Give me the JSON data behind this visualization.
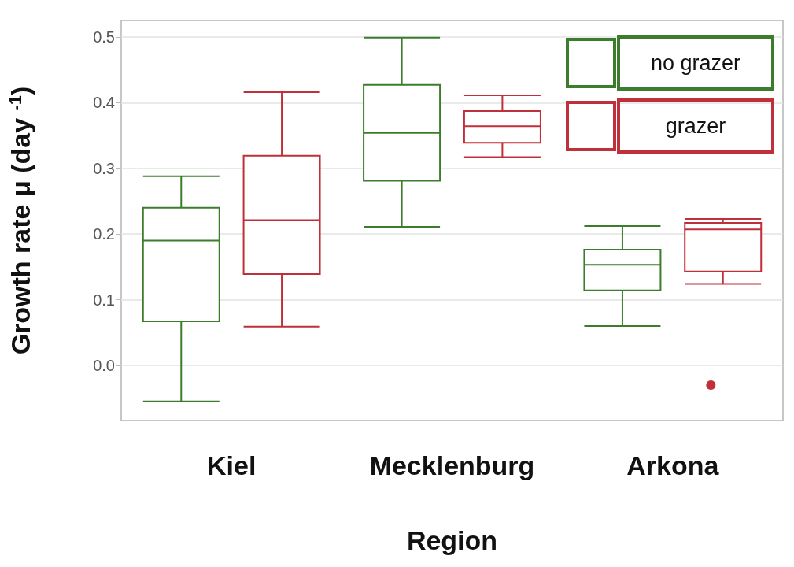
{
  "chart_data": {
    "type": "box",
    "xlabel": "Region",
    "ylabel": "Growth rate μ (day $^{-1}$)",
    "categories": [
      "Kiel",
      "Mecklenburg",
      "Arkona"
    ],
    "ylim": [
      -0.084,
      0.525
    ],
    "yticks": [
      {
        "value": 0,
        "label": "0.0"
      },
      0.1,
      0.2,
      0.3,
      0.4,
      0.5
    ],
    "grid": "y",
    "legend": "top right",
    "series": [
      {
        "name": "no grazer",
        "color": "#3b7d2c",
        "boxes": [
          {
            "low": -0.055,
            "q1": 0.067,
            "median": 0.19,
            "q3": 0.24,
            "high": 0.288
          },
          {
            "low": 0.211,
            "q1": 0.281,
            "median": 0.354,
            "q3": 0.427,
            "high": 0.499
          },
          {
            "low": 0.06,
            "q1": 0.114,
            "median": 0.153,
            "q3": 0.176,
            "high": 0.212
          }
        ]
      },
      {
        "name": "grazer",
        "color": "#c0303a",
        "boxes": [
          {
            "low": 0.059,
            "q1": 0.139,
            "median": 0.221,
            "q3": 0.319,
            "high": 0.416
          },
          {
            "low": 0.317,
            "q1": 0.339,
            "median": 0.364,
            "q3": 0.387,
            "high": 0.411
          },
          {
            "low": 0.124,
            "q1": 0.143,
            "median": 0.207,
            "q3": 0.217,
            "high": 0.223,
            "outliers": [
              -0.03
            ]
          }
        ]
      }
    ]
  }
}
